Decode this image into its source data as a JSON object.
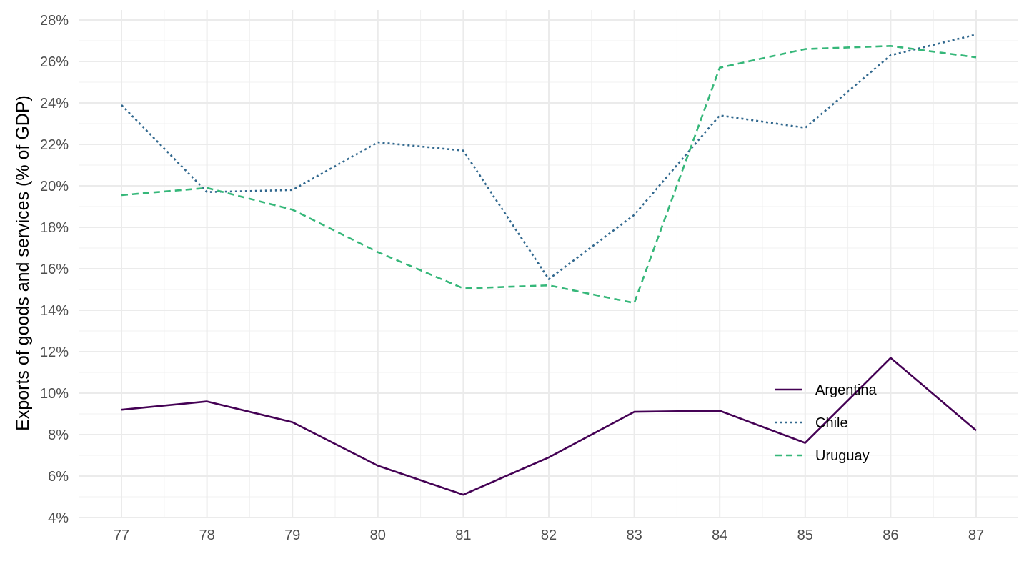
{
  "chart_data": {
    "type": "line",
    "title": "",
    "xlabel": "",
    "ylabel": "Exports of goods and services (% of GDP)",
    "x": [
      "77",
      "78",
      "79",
      "80",
      "81",
      "82",
      "83",
      "84",
      "85",
      "86",
      "87"
    ],
    "y_ticks": [
      "4%",
      "6%",
      "8%",
      "10%",
      "12%",
      "14%",
      "16%",
      "18%",
      "20%",
      "22%",
      "24%",
      "26%",
      "28%"
    ],
    "ylim": [
      4,
      28
    ],
    "grid": true,
    "legend_position": "bottom-right",
    "series": [
      {
        "name": "Argentina",
        "color": "#440154",
        "dash": "solid",
        "values": [
          9.2,
          9.6,
          8.6,
          6.5,
          5.1,
          6.9,
          9.1,
          9.15,
          7.6,
          11.7,
          8.2
        ]
      },
      {
        "name": "Chile",
        "color": "#31688e",
        "dash": "dotted",
        "values": [
          23.9,
          19.7,
          19.8,
          22.1,
          21.7,
          15.5,
          18.6,
          23.4,
          22.8,
          26.3,
          27.3
        ]
      },
      {
        "name": "Uruguay",
        "color": "#35b779",
        "dash": "dashed",
        "values": [
          19.55,
          19.9,
          18.85,
          16.8,
          15.05,
          15.2,
          14.35,
          25.7,
          26.6,
          26.75,
          26.2
        ]
      }
    ]
  }
}
